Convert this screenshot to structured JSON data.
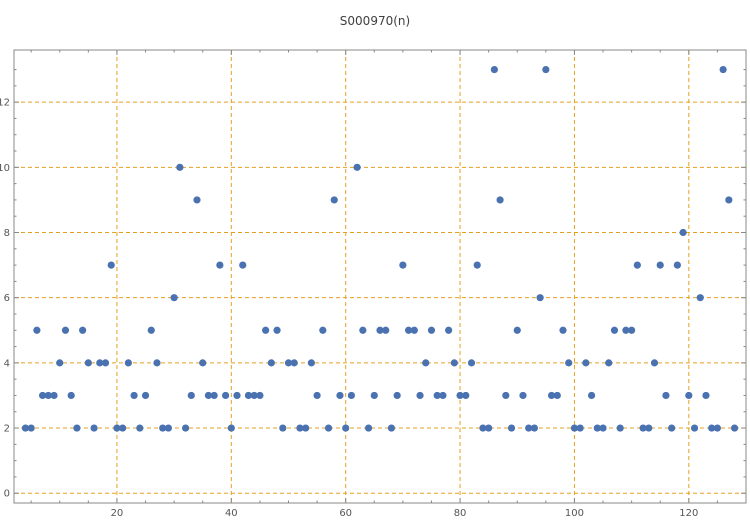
{
  "chart_data": {
    "type": "scatter",
    "title": "S000970(n)",
    "xlabel": "",
    "ylabel": "",
    "xlim": [
      2,
      130
    ],
    "ylim": [
      -0.3,
      13.6
    ],
    "grid": true,
    "legend": "none",
    "xticks": [
      20,
      40,
      60,
      80,
      100,
      120
    ],
    "yticks": [
      0,
      2,
      4,
      6,
      8,
      10,
      12
    ],
    "colors": {
      "marker": "#4a72b0",
      "grid": "#e6a020",
      "axis": "#888888",
      "text": "#555555"
    },
    "series": [
      {
        "x": [
          4,
          5,
          6,
          7,
          8,
          9,
          10,
          11,
          12,
          13,
          14,
          15,
          16,
          17,
          18,
          19,
          20,
          21,
          22,
          23,
          24,
          25,
          26,
          27,
          28,
          29,
          30,
          31,
          32,
          33,
          34,
          35,
          36,
          37,
          38,
          39,
          40,
          41,
          42,
          43,
          44,
          45,
          46,
          47,
          48,
          49,
          50,
          51,
          52,
          53,
          54,
          55,
          56,
          57,
          58,
          59,
          60,
          61,
          62,
          63,
          64,
          65,
          66,
          67,
          68,
          69,
          70,
          71,
          72,
          73,
          74,
          75,
          76,
          77,
          78,
          79,
          80,
          81,
          82,
          83,
          84,
          85,
          86,
          87,
          88,
          89,
          90,
          91,
          92,
          93,
          94,
          95,
          96,
          97,
          98,
          99,
          100,
          101,
          102,
          103,
          104,
          105,
          106,
          107,
          108,
          109,
          110,
          111,
          112,
          113,
          114,
          115,
          116,
          117,
          118,
          119,
          120,
          121,
          122,
          123,
          124,
          125,
          126,
          127,
          128
        ],
        "y": [
          2,
          2,
          5,
          3,
          3,
          3,
          4,
          5,
          3,
          2,
          5,
          4,
          2,
          4,
          4,
          7,
          2,
          2,
          4,
          3,
          2,
          3,
          5,
          4,
          2,
          2,
          6,
          10,
          2,
          3,
          9,
          4,
          3,
          3,
          7,
          3,
          2,
          3,
          7,
          3,
          3,
          3,
          5,
          4,
          5,
          2,
          4,
          4,
          2,
          2,
          4,
          3,
          5,
          2,
          9,
          3,
          2,
          3,
          10,
          5,
          2,
          3,
          5,
          5,
          2,
          3,
          7,
          5,
          5,
          3,
          4,
          5,
          3,
          3,
          5,
          4,
          3,
          3,
          4,
          7,
          2,
          2,
          13,
          9,
          3,
          2,
          5,
          3,
          2,
          2,
          6,
          13,
          3,
          3,
          5,
          4,
          2,
          2,
          4,
          3,
          2,
          2,
          4,
          5,
          2,
          5,
          5,
          7,
          2,
          2,
          4,
          7,
          3,
          2,
          7,
          8,
          3,
          2,
          6,
          3,
          2,
          2,
          13,
          9,
          2
        ]
      }
    ]
  }
}
